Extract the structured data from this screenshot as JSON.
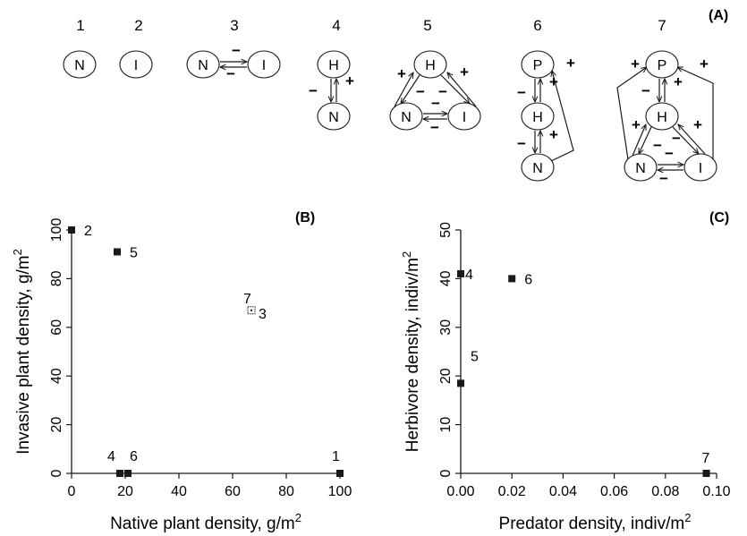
{
  "colors": {
    "ink": "#1a1a1a",
    "node_fill": "#ffffff",
    "axis": "#1a1a1a"
  },
  "panel_a": {
    "letter": "(A)",
    "modules": [
      {
        "id": "1",
        "nodes": [
          "N"
        ]
      },
      {
        "id": "2",
        "nodes": [
          "I"
        ]
      },
      {
        "id": "3",
        "nodes": [
          "N",
          "I"
        ]
      },
      {
        "id": "4",
        "nodes": [
          "H",
          "N"
        ]
      },
      {
        "id": "5",
        "nodes": [
          "H",
          "N",
          "I"
        ]
      },
      {
        "id": "6",
        "nodes": [
          "P",
          "H",
          "N"
        ]
      },
      {
        "id": "7",
        "nodes": [
          "P",
          "H",
          "N",
          "I"
        ]
      }
    ],
    "signs": {
      "plus": "+",
      "minus": "−"
    }
  },
  "chart_data": [
    {
      "type": "scatter",
      "panel": "(B)",
      "xlabel_main": "Native plant density, g/m",
      "xlabel_sup": "2",
      "ylabel_main": "Invasive plant density, g/m",
      "ylabel_sup": "2",
      "xlim": [
        0,
        100
      ],
      "ylim": [
        0,
        100
      ],
      "xticks": [
        "0",
        "20",
        "40",
        "60",
        "80",
        "100"
      ],
      "yticks": [
        "0",
        "20",
        "40",
        "60",
        "80",
        "100"
      ],
      "points": [
        {
          "label": "2",
          "x": 0,
          "y": 100,
          "marker": "filled"
        },
        {
          "label": "5",
          "x": 17,
          "y": 91,
          "marker": "filled"
        },
        {
          "label": "7",
          "x": 67,
          "y": 67,
          "marker": "open"
        },
        {
          "label": "3",
          "x": 67,
          "y": 67,
          "marker": "filled"
        },
        {
          "label": "4",
          "x": 18,
          "y": 0,
          "marker": "filled"
        },
        {
          "label": "6",
          "x": 21,
          "y": 0,
          "marker": "filled"
        },
        {
          "label": "1",
          "x": 100,
          "y": 0,
          "marker": "filled"
        }
      ]
    },
    {
      "type": "scatter",
      "panel": "(C)",
      "xlabel_main": "Predator density, indiv/m",
      "xlabel_sup": "2",
      "ylabel_main": "Herbivore density, indiv/m",
      "ylabel_sup": "2",
      "xlim": [
        0,
        0.1
      ],
      "ylim": [
        0,
        50
      ],
      "xticks": [
        "0.00",
        "0.02",
        "0.04",
        "0.06",
        "0.08",
        "0.10"
      ],
      "yticks": [
        "0",
        "10",
        "20",
        "30",
        "40",
        "50"
      ],
      "points": [
        {
          "label": "4",
          "x": 0.0,
          "y": 41,
          "marker": "filled"
        },
        {
          "label": "6",
          "x": 0.02,
          "y": 40,
          "marker": "filled"
        },
        {
          "label": "5",
          "x": 0.0,
          "y": 18.5,
          "marker": "filled"
        },
        {
          "label": "7",
          "x": 0.096,
          "y": 0,
          "marker": "filled"
        }
      ]
    }
  ]
}
